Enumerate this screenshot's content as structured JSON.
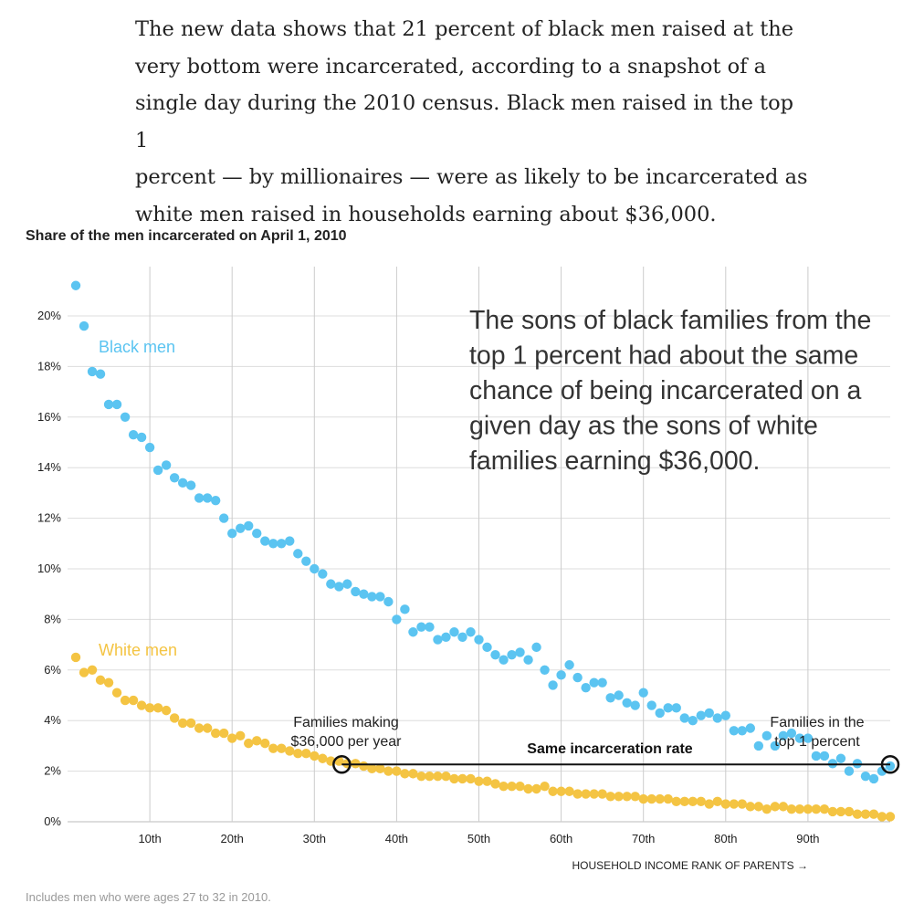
{
  "article": {
    "paragraph_lines": [
      "The new data shows that 21 percent of black men raised at the",
      "very bottom were incarcerated, according to a snapshot of a",
      "single day during the 2010 census. Black men raised in the top 1",
      "percent — by millionaires — were as likely to be incarcerated as",
      "white men raised in households earning about $36,000."
    ]
  },
  "footnote": "Includes men who were ages 27 to 32 in 2010.",
  "colors": {
    "black": "#5bc4f1",
    "white": "#f4c443",
    "grid": "#dddddd",
    "gridMajor": "#cccccc"
  },
  "chart_data": {
    "type": "scatter",
    "title": "Share of the men incarcerated on April 1, 2010",
    "xlabel": "HOUSEHOLD INCOME RANK OF PARENTS →",
    "ylabel": "",
    "xlim": [
      0,
      100
    ],
    "ylim": [
      0,
      22
    ],
    "x_ticks": [
      10,
      20,
      30,
      40,
      50,
      60,
      70,
      80,
      90
    ],
    "x_tick_labels": [
      "10th",
      "20th",
      "30th",
      "40th",
      "50th",
      "60th",
      "70th",
      "80th",
      "90th"
    ],
    "y_ticks": [
      0,
      2,
      4,
      6,
      8,
      10,
      12,
      14,
      16,
      18,
      20
    ],
    "y_tick_labels": [
      "0%",
      "2%",
      "4%",
      "6%",
      "8%",
      "10%",
      "12%",
      "14%",
      "16%",
      "18%",
      "20%"
    ],
    "series": [
      {
        "name": "Black men",
        "x": [
          1,
          2,
          3,
          4,
          5,
          6,
          7,
          8,
          9,
          10,
          11,
          12,
          13,
          14,
          15,
          16,
          17,
          18,
          19,
          20,
          21,
          22,
          23,
          24,
          25,
          26,
          27,
          28,
          29,
          30,
          31,
          32,
          33,
          34,
          35,
          36,
          37,
          38,
          39,
          40,
          41,
          42,
          43,
          44,
          45,
          46,
          47,
          48,
          49,
          50,
          51,
          52,
          53,
          54,
          55,
          56,
          57,
          58,
          59,
          60,
          61,
          62,
          63,
          64,
          65,
          66,
          67,
          68,
          69,
          70,
          71,
          72,
          73,
          74,
          75,
          76,
          77,
          78,
          79,
          80,
          81,
          82,
          83,
          84,
          85,
          86,
          87,
          88,
          89,
          90,
          91,
          92,
          93,
          94,
          95,
          96,
          97,
          98,
          99,
          100
        ],
        "values": [
          21.2,
          19.6,
          17.8,
          17.7,
          16.5,
          16.5,
          16.0,
          15.3,
          15.2,
          14.8,
          13.9,
          14.1,
          13.6,
          13.4,
          13.3,
          12.8,
          12.8,
          12.7,
          12.0,
          11.4,
          11.6,
          11.7,
          11.4,
          11.1,
          11.0,
          11.0,
          11.1,
          10.6,
          10.3,
          10.0,
          9.8,
          9.4,
          9.3,
          9.4,
          9.1,
          9.0,
          8.9,
          8.9,
          8.7,
          8.0,
          8.4,
          7.5,
          7.7,
          7.7,
          7.2,
          7.3,
          7.5,
          7.3,
          7.5,
          7.2,
          6.9,
          6.6,
          6.4,
          6.6,
          6.7,
          6.4,
          6.9,
          6.0,
          5.4,
          5.8,
          6.2,
          5.7,
          5.3,
          5.5,
          5.5,
          4.9,
          5.0,
          4.7,
          4.6,
          5.1,
          4.6,
          4.3,
          4.5,
          4.5,
          4.1,
          4.0,
          4.2,
          4.3,
          4.1,
          4.2,
          3.6,
          3.6,
          3.7,
          3.0,
          3.4,
          3.0,
          3.4,
          3.5,
          3.3,
          3.3,
          2.6,
          2.6,
          2.3,
          2.5,
          2.0,
          2.3,
          1.8,
          1.7,
          2.0,
          2.2
        ],
        "label": "Black men"
      },
      {
        "name": "White men",
        "x": [
          1,
          2,
          3,
          4,
          5,
          6,
          7,
          8,
          9,
          10,
          11,
          12,
          13,
          14,
          15,
          16,
          17,
          18,
          19,
          20,
          21,
          22,
          23,
          24,
          25,
          26,
          27,
          28,
          29,
          30,
          31,
          32,
          33,
          34,
          35,
          36,
          37,
          38,
          39,
          40,
          41,
          42,
          43,
          44,
          45,
          46,
          47,
          48,
          49,
          50,
          51,
          52,
          53,
          54,
          55,
          56,
          57,
          58,
          59,
          60,
          61,
          62,
          63,
          64,
          65,
          66,
          67,
          68,
          69,
          70,
          71,
          72,
          73,
          74,
          75,
          76,
          77,
          78,
          79,
          80,
          81,
          82,
          83,
          84,
          85,
          86,
          87,
          88,
          89,
          90,
          91,
          92,
          93,
          94,
          95,
          96,
          97,
          98,
          99,
          100
        ],
        "values": [
          6.5,
          5.9,
          6.0,
          5.6,
          5.5,
          5.1,
          4.8,
          4.8,
          4.6,
          4.5,
          4.5,
          4.4,
          4.1,
          3.9,
          3.9,
          3.7,
          3.7,
          3.5,
          3.5,
          3.3,
          3.4,
          3.1,
          3.2,
          3.1,
          2.9,
          2.9,
          2.8,
          2.7,
          2.7,
          2.6,
          2.5,
          2.4,
          2.4,
          2.3,
          2.3,
          2.2,
          2.1,
          2.1,
          2.0,
          2.0,
          1.9,
          1.9,
          1.8,
          1.8,
          1.8,
          1.8,
          1.7,
          1.7,
          1.7,
          1.6,
          1.6,
          1.5,
          1.4,
          1.4,
          1.4,
          1.3,
          1.3,
          1.4,
          1.2,
          1.2,
          1.2,
          1.1,
          1.1,
          1.1,
          1.1,
          1.0,
          1.0,
          1.0,
          1.0,
          0.9,
          0.9,
          0.9,
          0.9,
          0.8,
          0.8,
          0.8,
          0.8,
          0.7,
          0.8,
          0.7,
          0.7,
          0.7,
          0.6,
          0.6,
          0.5,
          0.6,
          0.6,
          0.5,
          0.5,
          0.5,
          0.5,
          0.5,
          0.4,
          0.4,
          0.4,
          0.3,
          0.3,
          0.3,
          0.2,
          0.2
        ],
        "label": "White men"
      }
    ],
    "annotations": {
      "callout_lines": [
        "The sons of black families from the",
        "top 1 percent had about the same",
        "chance of being incarcerated on a",
        "given day as the sons of white",
        "families earning $36,000."
      ],
      "left_label_lines": [
        "Families making",
        "$36,000 per year"
      ],
      "right_label_lines": [
        "Families in the",
        "top 1 percent"
      ],
      "connector_label": "Same incarceration rate",
      "connector": {
        "from_x": 34,
        "to_x": 100,
        "y": 2.3
      }
    }
  }
}
